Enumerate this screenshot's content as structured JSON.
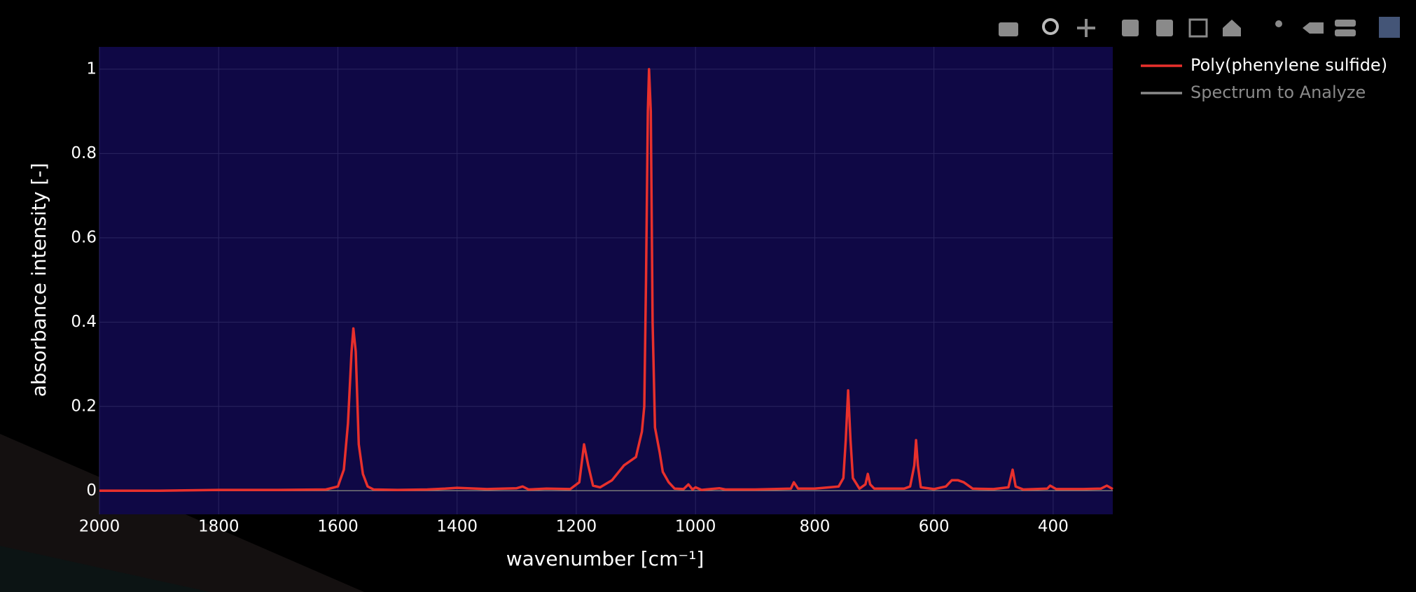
{
  "chart_data": {
    "type": "line",
    "xlabel": "wavenumber [cm⁻¹]",
    "ylabel": "absorbance intensity [-]",
    "x": [
      2000,
      1900,
      1800,
      1700,
      1620,
      1600,
      1590,
      1583,
      1577,
      1574,
      1570,
      1565,
      1558,
      1550,
      1540,
      1500,
      1450,
      1420,
      1400,
      1350,
      1300,
      1290,
      1280,
      1250,
      1210,
      1195,
      1187,
      1180,
      1172,
      1160,
      1140,
      1120,
      1100,
      1090,
      1086,
      1083,
      1080,
      1078,
      1075,
      1072,
      1068,
      1060,
      1055,
      1045,
      1035,
      1020,
      1012,
      1005,
      1000,
      990,
      960,
      950,
      900,
      840,
      835,
      828,
      800,
      760,
      752,
      748,
      744,
      740,
      736,
      725,
      715,
      711,
      707,
      700,
      650,
      640,
      633,
      630,
      627,
      622,
      600,
      580,
      570,
      560,
      550,
      535,
      500,
      475,
      468,
      463,
      450,
      410,
      405,
      395,
      350,
      320,
      310,
      300
    ],
    "series": [
      {
        "name": "Poly(phenylene sulfide)",
        "color": "#e8302c",
        "values": [
          0,
          0,
          0.002,
          0.002,
          0.003,
          0.01,
          0.05,
          0.16,
          0.33,
          0.385,
          0.33,
          0.11,
          0.04,
          0.01,
          0.003,
          0.002,
          0.003,
          0.005,
          0.007,
          0.004,
          0.006,
          0.01,
          0.003,
          0.005,
          0.004,
          0.02,
          0.11,
          0.06,
          0.012,
          0.008,
          0.025,
          0.06,
          0.08,
          0.14,
          0.2,
          0.5,
          0.9,
          1.0,
          0.9,
          0.4,
          0.15,
          0.09,
          0.045,
          0.02,
          0.005,
          0.004,
          0.015,
          0.003,
          0.008,
          0.002,
          0.006,
          0.003,
          0.003,
          0.005,
          0.02,
          0.005,
          0.005,
          0.01,
          0.03,
          0.12,
          0.238,
          0.12,
          0.03,
          0.005,
          0.015,
          0.04,
          0.015,
          0.005,
          0.005,
          0.01,
          0.06,
          0.12,
          0.06,
          0.008,
          0.004,
          0.01,
          0.025,
          0.025,
          0.02,
          0.005,
          0.004,
          0.008,
          0.05,
          0.01,
          0.003,
          0.005,
          0.012,
          0.004,
          0.004,
          0.005,
          0.012,
          0.004
        ]
      },
      {
        "name": "Spectrum to Analyze",
        "color": "#8a8a8a",
        "visible": false
      }
    ],
    "xlim": [
      2000,
      300
    ],
    "ylim": [
      -0.056,
      1.053
    ],
    "xticks": [
      2000,
      1800,
      1600,
      1400,
      1200,
      1000,
      800,
      600,
      400
    ],
    "yticks": [
      0,
      0.2,
      0.4,
      0.6,
      0.8,
      1
    ],
    "grid": true,
    "zeroline": true,
    "legend": "right"
  }
}
